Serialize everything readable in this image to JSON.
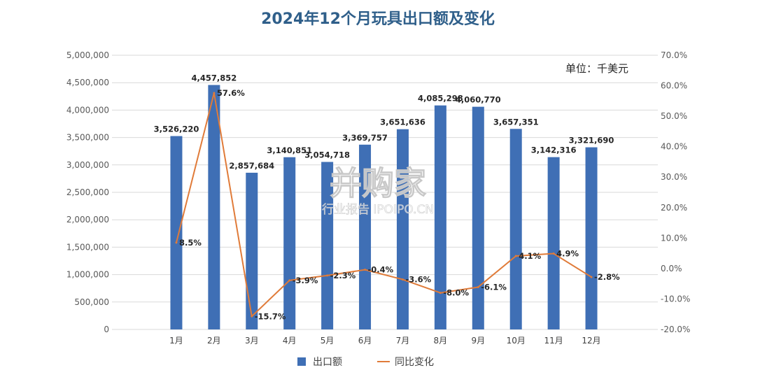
{
  "chart_data": {
    "type": "bar",
    "title": "2024年12个月玩具出口额及变化",
    "unit_label": "单位：千美元",
    "categories": [
      "1月",
      "2月",
      "3月",
      "4月",
      "5月",
      "6月",
      "7月",
      "8月",
      "9月",
      "10月",
      "11月",
      "12月"
    ],
    "series": [
      {
        "name": "出口额",
        "type": "bar",
        "axis": "left",
        "color": "#3f6fb5",
        "values": [
          3526220,
          4457852,
          2857684,
          3140851,
          3054718,
          3369757,
          3651636,
          4085298,
          4060770,
          3657351,
          3142316,
          3321690
        ],
        "labels": [
          "3,526,220",
          "4,457,852",
          "2,857,684",
          "3,140,851",
          "3,054,718",
          "3,369,757",
          "3,651,636",
          "4,085,298",
          "4,060,770",
          "3,657,351",
          "3,142,316",
          "3,321,690"
        ]
      },
      {
        "name": "同比变化",
        "type": "line",
        "axis": "right",
        "color": "#e07b39",
        "values": [
          8.5,
          57.6,
          -15.7,
          -3.9,
          -2.3,
          -0.4,
          -3.6,
          -8.0,
          -6.1,
          4.1,
          4.9,
          -2.8
        ],
        "labels": [
          "8.5%",
          "57.6%",
          "-15.7%",
          "-3.9%",
          "-2.3%",
          "-0.4%",
          "-3.6%",
          "-8.0%",
          "-6.1%",
          "4.1%",
          "4.9%",
          "-2.8%"
        ]
      }
    ],
    "y_left": {
      "ylim": [
        0,
        5000000
      ],
      "ticks": [
        0,
        500000,
        1000000,
        1500000,
        2000000,
        2500000,
        3000000,
        3500000,
        4000000,
        4500000,
        5000000
      ],
      "tick_labels": [
        "0",
        "500,000",
        "1,000,000",
        "1,500,000",
        "2,000,000",
        "2,500,000",
        "3,000,000",
        "3,500,000",
        "4,000,000",
        "4,500,000",
        "5,000,000"
      ]
    },
    "y_right": {
      "ylim": [
        -20,
        70
      ],
      "ticks": [
        -20,
        -10,
        0,
        10,
        20,
        30,
        40,
        50,
        60,
        70
      ],
      "tick_labels": [
        "-20.0%",
        "-10.0%",
        "0.0%",
        "10.0%",
        "20.0%",
        "30.0%",
        "40.0%",
        "50.0%",
        "60.0%",
        "70.0%"
      ]
    },
    "grid": true,
    "legend_position": "bottom"
  },
  "watermark": {
    "main": "并购家",
    "sub": "行业报告 IPOIPO.CN"
  }
}
